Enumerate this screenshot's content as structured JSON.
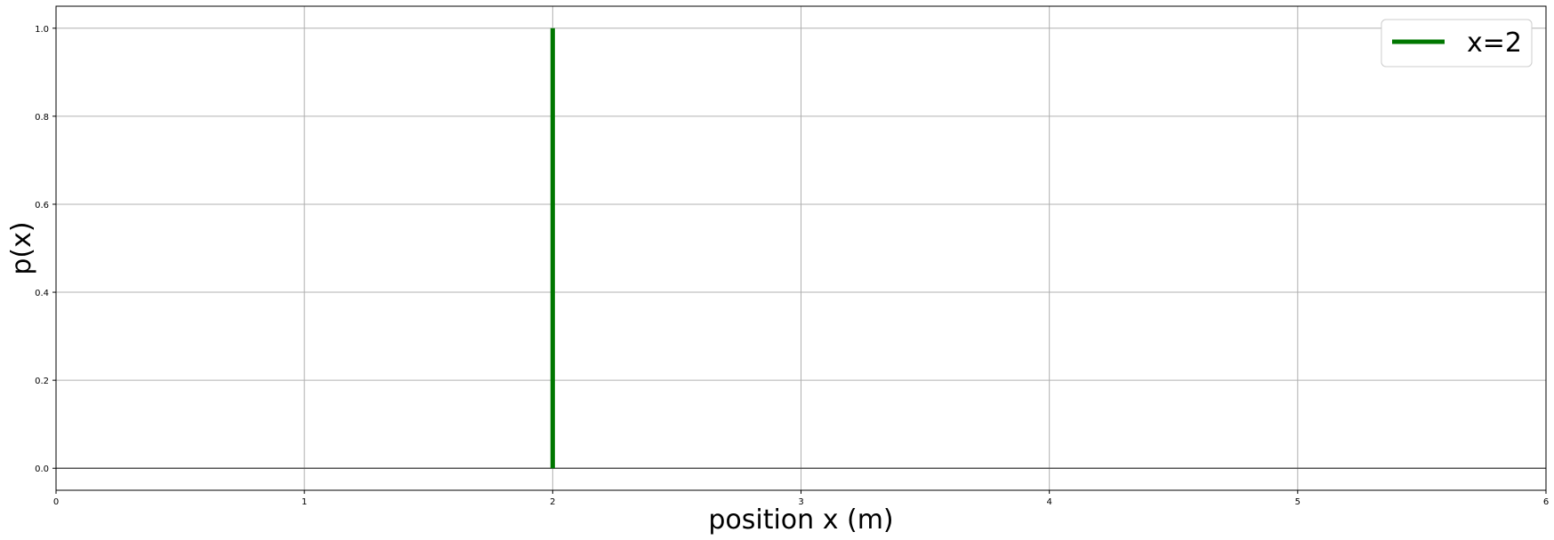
{
  "chart_data": {
    "type": "line",
    "xlabel": "position x (m)",
    "ylabel": "p(x)",
    "xlim": [
      0,
      6
    ],
    "ylim": [
      -0.05,
      1.05
    ],
    "xticks": [
      0,
      1,
      2,
      3,
      4,
      5,
      6
    ],
    "yticks": [
      0.0,
      0.2,
      0.4,
      0.6,
      0.8,
      1.0
    ],
    "xtick_labels": [
      "0",
      "1",
      "2",
      "3",
      "4",
      "5",
      "6"
    ],
    "ytick_labels": [
      "0.0",
      "0.2",
      "0.4",
      "0.6",
      "0.8",
      "1.0"
    ],
    "grid": true,
    "legend_position": "top-right",
    "baseline": {
      "y": 0,
      "color": "#555555"
    },
    "series": [
      {
        "name": "x=2",
        "color": "#007700",
        "x": [
          2,
          2
        ],
        "y": [
          0,
          1
        ]
      }
    ]
  }
}
